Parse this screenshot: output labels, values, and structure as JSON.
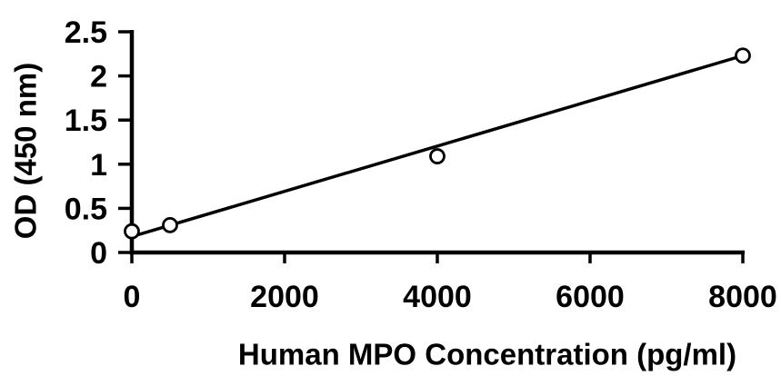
{
  "figure": {
    "background": "#ffffff",
    "foreground": "#000000"
  },
  "chart_data": {
    "type": "scatter",
    "title": "",
    "xlabel": "Human MPO Concentration (pg/ml)",
    "ylabel": "OD (450 nm)",
    "x": [
      0,
      500,
      4000,
      8000
    ],
    "y": [
      0.24,
      0.31,
      1.09,
      2.23
    ],
    "xlim": [
      0,
      8000
    ],
    "ylim": [
      0,
      2.5
    ],
    "xticks": [
      0,
      2000,
      4000,
      6000,
      8000
    ],
    "xtick_labels": [
      "0",
      "2000",
      "4000",
      "6000",
      "8000"
    ],
    "yticks": [
      0,
      0.5,
      1,
      1.5,
      2,
      2.5
    ],
    "ytick_labels": [
      "0",
      "0.5",
      "1",
      "1.5",
      "2",
      "2.5"
    ],
    "trendline": {
      "shape": "linear",
      "x1": 0,
      "y1": 0.18,
      "x2": 8000,
      "y2": 2.23
    },
    "marker": "open-circle",
    "grid": false,
    "legend": "none",
    "color": "#000000",
    "background": "#ffffff"
  }
}
